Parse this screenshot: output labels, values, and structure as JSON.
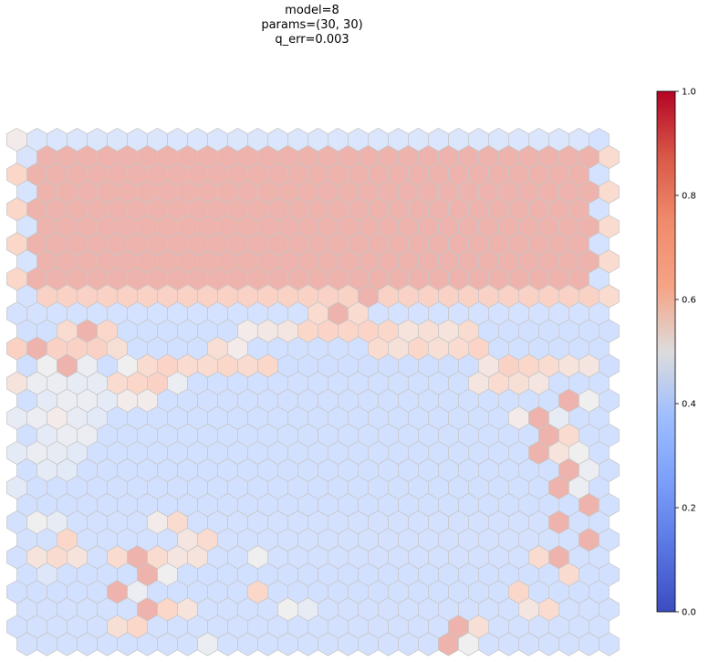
{
  "chart_data": {
    "type": "heatmap",
    "layout": "hexagonal",
    "title_lines": [
      "model=8",
      "params=(30, 30)",
      "q_err=0.003"
    ],
    "grid": {
      "rows": 30,
      "cols": 30
    },
    "colormap": {
      "name": "coolwarm",
      "stops": [
        [
          0.0,
          "#3b4cc0"
        ],
        [
          0.125,
          "#5977e3"
        ],
        [
          0.25,
          "#7b9ff9"
        ],
        [
          0.375,
          "#9ebeff"
        ],
        [
          0.5,
          "#dddcdc"
        ],
        [
          0.625,
          "#f6a385"
        ],
        [
          0.75,
          "#f08b6c"
        ],
        [
          0.875,
          "#d95847"
        ],
        [
          1.0,
          "#b40426"
        ]
      ]
    },
    "colorbar": {
      "vmin": 0.0,
      "vmax": 1.0,
      "ticks": [
        0.0,
        0.2,
        0.4,
        0.6,
        0.8,
        1.0
      ],
      "tick_labels": [
        "0.0",
        "0.2",
        "0.4",
        "0.6",
        "0.8",
        "1.0"
      ]
    },
    "cell_alpha": 0.45,
    "edge_color": "#c8c8c8",
    "rows": [
      {
        "base": 0.41,
        "edge": [
          0.56,
          0.37
        ],
        "exceptions": {
          "0": 0.52,
          "29": 0.38
        }
      },
      {
        "base": 0.88,
        "edge": [
          0.4,
          0.6
        ]
      },
      {
        "base": 0.88,
        "edge": [
          0.62,
          0.38
        ]
      },
      {
        "base": 0.88,
        "edge": [
          0.39,
          0.6
        ]
      },
      {
        "base": 0.88,
        "edge": [
          0.62,
          0.38
        ]
      },
      {
        "base": 0.88,
        "edge": [
          0.39,
          0.6
        ]
      },
      {
        "base": 0.88,
        "edge": [
          0.62,
          0.38
        ]
      },
      {
        "base": 0.88,
        "edge": [
          0.39,
          0.6
        ]
      },
      {
        "base": 0.88,
        "edge": [
          0.62,
          0.38
        ]
      },
      {
        "base": 0.66,
        "edge": [
          0.38,
          0.6
        ],
        "exceptions": {
          "17": 0.88,
          "18": 0.66
        }
      },
      {
        "base": 0.38,
        "exceptions": {
          "15": 0.6,
          "16": 0.88,
          "17": 0.6
        }
      },
      {
        "base": 0.36,
        "exceptions": {
          "2": 0.6,
          "3": 0.88,
          "4": 0.62,
          "11": 0.52,
          "12": 0.54,
          "13": 0.55,
          "14": 0.62,
          "15": 0.64,
          "16": 0.63,
          "17": 0.64,
          "18": 0.62,
          "19": 0.56,
          "20": 0.58,
          "21": 0.56,
          "22": 0.6
        }
      },
      {
        "base": 0.36,
        "exceptions": {
          "0": 0.68,
          "1": 0.88,
          "2": 0.66,
          "3": 0.66,
          "4": 0.66,
          "5": 0.58,
          "10": 0.58,
          "11": 0.52,
          "18": 0.6,
          "19": 0.57,
          "20": 0.62,
          "21": 0.58,
          "22": 0.6,
          "23": 0.64
        }
      },
      {
        "base": 0.35,
        "exceptions": {
          "1": 0.5,
          "2": 0.88,
          "3": 0.48,
          "5": 0.5,
          "6": 0.6,
          "7": 0.64,
          "8": 0.6,
          "9": 0.6,
          "10": 0.62,
          "11": 0.6,
          "12": 0.62,
          "23": 0.55,
          "24": 0.66,
          "25": 0.62,
          "26": 0.6,
          "27": 0.56,
          "28": 0.55
        }
      },
      {
        "base": 0.36,
        "exceptions": {
          "0": 0.56,
          "1": 0.48,
          "2": 0.48,
          "3": 0.46,
          "4": 0.46,
          "5": 0.6,
          "6": 0.62,
          "7": 0.66,
          "8": 0.48,
          "23": 0.55,
          "24": 0.6,
          "25": 0.58,
          "26": 0.55
        }
      },
      {
        "base": 0.36,
        "exceptions": {
          "1": 0.45,
          "2": 0.48,
          "3": 0.48,
          "4": 0.45,
          "5": 0.52,
          "6": 0.52,
          "27": 0.88,
          "28": 0.5
        }
      },
      {
        "base": 0.36,
        "exceptions": {
          "0": 0.46,
          "1": 0.48,
          "2": 0.52,
          "3": 0.46,
          "4": 0.44,
          "25": 0.52,
          "26": 0.88,
          "27": 0.46
        }
      },
      {
        "base": 0.36,
        "exceptions": {
          "1": 0.45,
          "2": 0.48,
          "3": 0.48,
          "26": 0.88,
          "27": 0.6
        }
      },
      {
        "base": 0.36,
        "exceptions": {
          "0": 0.45,
          "1": 0.48,
          "2": 0.46,
          "3": 0.44,
          "26": 0.88,
          "27": 0.56,
          "28": 0.5
        }
      },
      {
        "base": 0.36,
        "exceptions": {
          "1": 0.45,
          "2": 0.44,
          "27": 0.88,
          "28": 0.48
        }
      },
      {
        "base": 0.36,
        "exceptions": {
          "0": 0.44,
          "27": 0.88,
          "28": 0.48
        }
      },
      {
        "base": 0.36,
        "exceptions": {
          "28": 0.88
        }
      },
      {
        "base": 0.37,
        "exceptions": {
          "1": 0.5,
          "2": 0.46,
          "7": 0.52,
          "8": 0.6,
          "27": 0.88
        }
      },
      {
        "base": 0.37,
        "exceptions": {
          "2": 0.62,
          "8": 0.55,
          "9": 0.6,
          "28": 0.88
        }
      },
      {
        "base": 0.37,
        "exceptions": {
          "1": 0.56,
          "2": 0.6,
          "3": 0.56,
          "5": 0.6,
          "6": 0.88,
          "7": 0.6,
          "8": 0.55,
          "9": 0.56,
          "12": 0.5,
          "26": 0.6,
          "27": 0.88
        }
      },
      {
        "base": 0.36,
        "exceptions": {
          "1": 0.42,
          "6": 0.88,
          "7": 0.5,
          "27": 0.6
        }
      },
      {
        "base": 0.36,
        "exceptions": {
          "5": 0.88,
          "6": 0.48,
          "12": 0.62,
          "25": 0.62
        }
      },
      {
        "base": 0.37,
        "exceptions": {
          "6": 0.88,
          "7": 0.62,
          "8": 0.56,
          "13": 0.5,
          "14": 0.46,
          "25": 0.55,
          "26": 0.6
        }
      },
      {
        "base": 0.37,
        "exceptions": {
          "5": 0.58,
          "6": 0.62,
          "22": 0.88,
          "23": 0.58
        }
      },
      {
        "base": 0.37,
        "exceptions": {
          "9": 0.48,
          "21": 0.88,
          "22": 0.5
        }
      }
    ]
  }
}
